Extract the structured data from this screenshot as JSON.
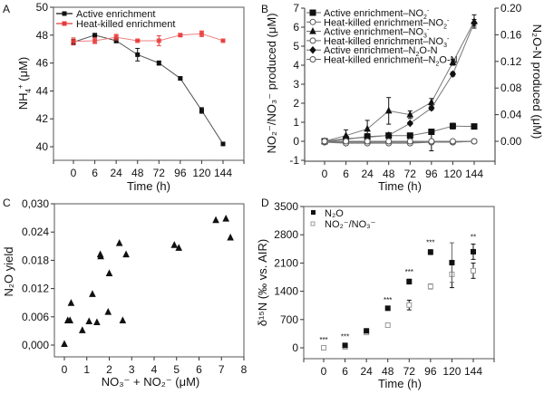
{
  "chart_data": [
    {
      "panel": "A",
      "type": "line",
      "title": "",
      "xlabel": "Time (h)",
      "ylabel": "NH4+ (μM)",
      "categories": [
        "0",
        "6",
        "24",
        "48",
        "72",
        "96",
        "120",
        "144"
      ],
      "ylim": [
        39,
        50
      ],
      "yticks": [
        "40",
        "42",
        "44",
        "46",
        "48",
        "50"
      ],
      "legend_position": "top-left",
      "series": [
        {
          "name": "Active enrichment",
          "color": "#111111",
          "marker": "square",
          "values": [
            47.5,
            48.0,
            47.6,
            46.6,
            46.0,
            44.9,
            42.6,
            40.2
          ],
          "errors": [
            0.2,
            0.1,
            0.15,
            0.45,
            0.15,
            0.1,
            0.2,
            0.1
          ]
        },
        {
          "name": "Heat-killed enrichment",
          "color": "#e8393a",
          "marker": "circle",
          "values": [
            47.55,
            47.6,
            47.85,
            47.6,
            47.6,
            48.0,
            48.1,
            47.6
          ],
          "errors": [
            0.25,
            0.2,
            0.2,
            0.05,
            0.35,
            0.1,
            0.2,
            0.05
          ]
        }
      ]
    },
    {
      "panel": "B",
      "type": "line",
      "xlabel": "Time (h)",
      "ylabel": "NO2-/NO3- produced (μM)",
      "ylabel_right": "N2O-N produced (μM)",
      "categories": [
        "0",
        "6",
        "24",
        "48",
        "72",
        "96",
        "120",
        "144"
      ],
      "ylim": [
        -1,
        7
      ],
      "yticks": [
        "-1",
        "0",
        "1",
        "2",
        "3",
        "4",
        "5",
        "6",
        "7"
      ],
      "ylim_right": [
        -0.0286,
        0.2
      ],
      "yticks_right": [
        "0.00",
        "0.04",
        "0.08",
        "0.12",
        "0.16",
        "0.20"
      ],
      "legend_position": "top-left",
      "series": [
        {
          "name": "Active enrichment–NO2-",
          "axis": "left",
          "marker": "square-filled",
          "values": [
            0.0,
            0.1,
            0.25,
            0.3,
            0.3,
            0.5,
            0.8,
            0.78
          ],
          "errors": [
            0.05,
            0.1,
            0.15,
            0.05,
            0.05,
            0.1,
            0.15,
            0.05
          ]
        },
        {
          "name": "Heat-killed enrichment–NO2-",
          "axis": "left",
          "marker": "square-open",
          "values": [
            -0.05,
            -0.05,
            -0.05,
            -0.05,
            -0.05,
            -0.05,
            -0.05,
            0.0
          ],
          "errors": [
            0.05,
            0.05,
            0.05,
            0.05,
            0.05,
            0.05,
            0.05,
            0.05
          ]
        },
        {
          "name": "Active enrichment–NO3-",
          "axis": "left",
          "marker": "triangle-filled",
          "values": [
            0.0,
            0.3,
            0.65,
            1.6,
            1.4,
            2.05,
            4.15,
            6.3
          ],
          "errors": [
            0.05,
            0.3,
            0.45,
            0.7,
            0.2,
            0.2,
            0.15,
            0.35
          ]
        },
        {
          "name": "Heat-killed enrichment–NO3-",
          "axis": "left",
          "marker": "triangle-open",
          "values": [
            -0.05,
            -0.1,
            -0.1,
            -0.1,
            -0.1,
            -0.05,
            -0.05,
            0.0
          ],
          "errors": [
            0.05,
            0.1,
            0.05,
            0.1,
            0.05,
            0.45,
            0.1,
            0.05
          ]
        },
        {
          "name": "Active enrichment–N2O-N",
          "axis": "right",
          "marker": "diamond-filled",
          "values": [
            0.0,
            0.004,
            0.006,
            0.009,
            0.027,
            0.05,
            0.101,
            0.178
          ],
          "errors": [
            0.001,
            0.002,
            0.002,
            0.002,
            0.002,
            0.003,
            0.003,
            0.005
          ]
        },
        {
          "name": "Heat-killed enrichment–N2O-N",
          "axis": "right",
          "marker": "circle-open",
          "values": [
            0.0,
            0.0,
            0.0,
            0.0,
            0.0,
            0.0,
            0.0,
            0.0
          ],
          "errors": [
            0.001,
            0.001,
            0.001,
            0.001,
            0.001,
            0.001,
            0.001,
            0.001
          ]
        }
      ]
    },
    {
      "panel": "C",
      "type": "scatter",
      "xlabel": "NO3- + NO2- (μM)",
      "ylabel": "N2O yield",
      "xlim": [
        -0.3,
        8
      ],
      "ylim": [
        -0.0025,
        0.03
      ],
      "xticks": [
        "0",
        "1",
        "2",
        "3",
        "4",
        "5",
        "6",
        "7",
        "8"
      ],
      "yticks": [
        "0,000",
        "0.006",
        "0.012",
        "0.018",
        "0.024",
        "0,030"
      ],
      "series": [
        {
          "name": "samples",
          "marker": "triangle-filled",
          "points": [
            [
              0.0,
              0.0002
            ],
            [
              0.15,
              0.0052
            ],
            [
              0.25,
              0.0052
            ],
            [
              0.3,
              0.0089
            ],
            [
              0.8,
              0.0031
            ],
            [
              1.1,
              0.005
            ],
            [
              1.25,
              0.0108
            ],
            [
              1.45,
              0.0048
            ],
            [
              1.6,
              0.0192
            ],
            [
              1.62,
              0.0188
            ],
            [
              1.95,
              0.007
            ],
            [
              2.0,
              0.0152
            ],
            [
              2.45,
              0.0216
            ],
            [
              2.6,
              0.0052
            ],
            [
              2.75,
              0.0192
            ],
            [
              4.9,
              0.0212
            ],
            [
              5.1,
              0.0206
            ],
            [
              6.75,
              0.0265
            ],
            [
              7.2,
              0.0268
            ],
            [
              7.4,
              0.0228
            ]
          ]
        }
      ]
    },
    {
      "panel": "D",
      "type": "scatter",
      "xlabel": "Time (h)",
      "ylabel": "δ15N (‰ vs. AIR)",
      "categories": [
        "0",
        "6",
        "24",
        "48",
        "72",
        "96",
        "120",
        "144"
      ],
      "ylim": [
        -250,
        3500
      ],
      "yticks": [
        "0",
        "700",
        "1400",
        "2100",
        "2800",
        "3500"
      ],
      "legend_position": "top-left",
      "series": [
        {
          "name": "N2O",
          "marker": "square-filled",
          "color": "#111111",
          "values": [
            null,
            60,
            420,
            980,
            1640,
            2370,
            2110,
            2380
          ],
          "errors": [
            0,
            40,
            40,
            30,
            60,
            60,
            490,
            190
          ]
        },
        {
          "name": "NO2-/NO3-",
          "marker": "square-open",
          "color": "#999999",
          "values": [
            0,
            20,
            380,
            560,
            1060,
            1520,
            1820,
            1910
          ],
          "errors": [
            20,
            40,
            30,
            30,
            120,
            60,
            330,
            190
          ]
        }
      ],
      "significance": [
        "***",
        "***",
        "",
        "***",
        "***",
        "***",
        "",
        "**"
      ]
    }
  ],
  "labels": {
    "panel_a": "A",
    "panel_b": "B",
    "panel_c": "C",
    "panel_d": "D",
    "a_ylabel_main": "NH",
    "a_ylabel_sub": "4",
    "a_ylabel_sup": "+",
    "a_ylabel_unit": " (μM)",
    "time_label": "Time (h)",
    "a_legend": [
      "Active enrichment",
      "Heat-killed enrichment"
    ],
    "b_legend": [
      {
        "main": "Active enrichment–NO",
        "sub": "2",
        "sup": "-"
      },
      {
        "main": "Heat-killed enrichment–NO",
        "sub": "2",
        "sup": "-"
      },
      {
        "main": "Active enrichment–NO",
        "sub": "3",
        "sup": "-"
      },
      {
        "main": "Heat-killed enrichment–NO",
        "sub": "3",
        "sup": "-"
      },
      {
        "main": "Active enrichment–N",
        "sub": "2",
        "sup": "",
        "tail": "O-N"
      },
      {
        "main": "Heat-killed enrichment–N",
        "sub": "2",
        "sup": "",
        "tail": "O-N"
      }
    ],
    "b_ylabel": "NO₂⁻/NO₃⁻ produced (μM)",
    "b_ylabel_right": "N₂O-N produced (μM)",
    "c_ylabel": "N₂O yield",
    "c_xlabel": "NO₃⁻ + NO₂⁻ (μM)",
    "d_ylabel": "δ¹⁵N (‰ vs. AIR)",
    "d_legend": [
      "N₂O",
      "NO₂⁻/NO₃⁻"
    ]
  }
}
